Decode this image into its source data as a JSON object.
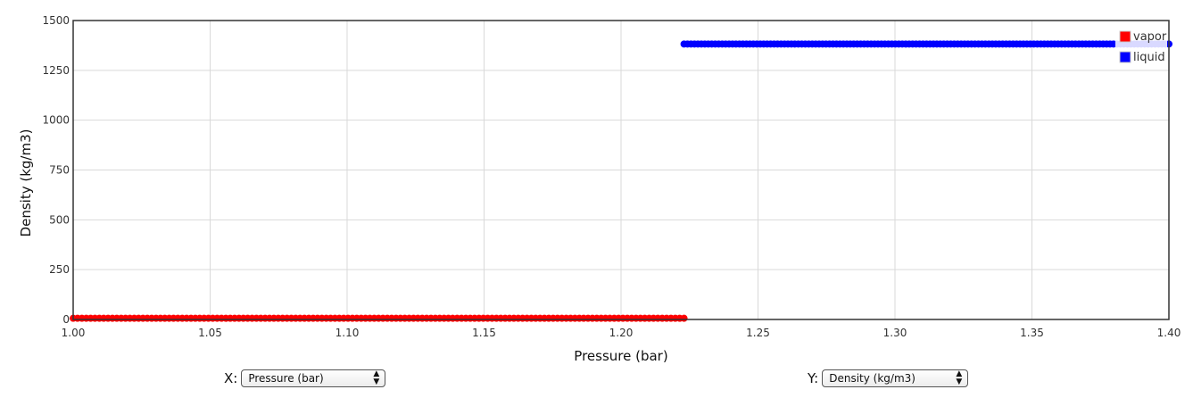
{
  "chart_data": {
    "type": "scatter",
    "xlabel": "Pressure (bar)",
    "ylabel": "Density (kg/m3)",
    "xlim": [
      1.0,
      1.4
    ],
    "ylim": [
      0,
      1500
    ],
    "x_ticks": [
      "1.00",
      "1.05",
      "1.10",
      "1.15",
      "1.20",
      "1.25",
      "1.30",
      "1.35",
      "1.40"
    ],
    "y_ticks": [
      "0",
      "250",
      "500",
      "750",
      "1000",
      "1250",
      "1500"
    ],
    "grid": true,
    "legend_position": "top-right",
    "series": [
      {
        "name": "vapor",
        "color": "#ff0000",
        "x_start": 1.0,
        "x_end": 1.223,
        "y": 6
      },
      {
        "name": "liquid",
        "color": "#0000ff",
        "x_start": 1.223,
        "x_end": 1.4,
        "y": 1382
      }
    ]
  },
  "controls": {
    "x_label": "X:",
    "x_value": "Pressure (bar)",
    "y_label": "Y:",
    "y_value": "Density (kg/m3)"
  }
}
